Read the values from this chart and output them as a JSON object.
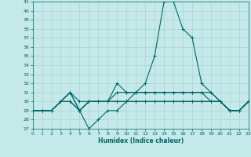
{
  "xlabel": "Humidex (Indice chaleur)",
  "ylabel": "",
  "background_color": "#c5e8e8",
  "grid_color": "#aad4d4",
  "line_color": "#006666",
  "ylim": [
    27,
    41
  ],
  "xlim": [
    0,
    23
  ],
  "yticks": [
    27,
    28,
    29,
    30,
    31,
    32,
    33,
    34,
    35,
    36,
    37,
    38,
    39,
    40,
    41
  ],
  "xticks": [
    0,
    1,
    2,
    3,
    4,
    5,
    6,
    7,
    8,
    9,
    10,
    11,
    12,
    13,
    14,
    15,
    16,
    17,
    18,
    19,
    20,
    21,
    22,
    23
  ],
  "curves": [
    [
      29,
      29,
      29,
      30,
      30,
      29,
      27,
      28,
      29,
      29,
      30,
      31,
      32,
      35,
      41,
      41,
      38,
      37,
      32,
      31,
      30,
      29,
      29,
      30
    ],
    [
      29,
      29,
      29,
      30,
      31,
      30,
      30,
      30,
      30,
      32,
      31,
      31,
      31,
      31,
      31,
      31,
      31,
      31,
      31,
      30,
      30,
      29,
      29,
      30
    ],
    [
      29,
      29,
      29,
      30,
      31,
      29,
      30,
      30,
      30,
      30,
      30,
      30,
      30,
      30,
      30,
      30,
      30,
      30,
      30,
      30,
      30,
      29,
      29,
      30
    ],
    [
      29,
      29,
      29,
      30,
      30,
      29,
      30,
      30,
      30,
      30,
      30,
      30,
      30,
      30,
      30,
      30,
      30,
      30,
      30,
      30,
      30,
      29,
      29,
      30
    ],
    [
      29,
      29,
      29,
      30,
      31,
      29,
      30,
      30,
      30,
      31,
      31,
      31,
      31,
      31,
      31,
      31,
      31,
      31,
      31,
      31,
      30,
      29,
      29,
      30
    ]
  ]
}
